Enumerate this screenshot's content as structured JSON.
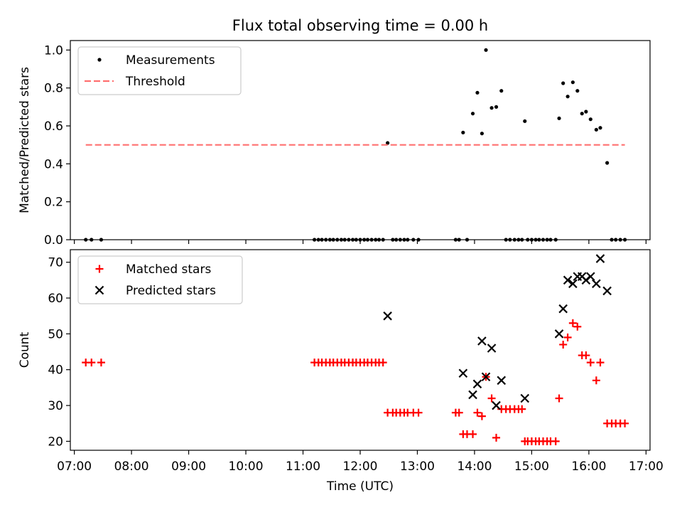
{
  "title": "Flux total observing time = 0.00 h",
  "colors": {
    "measurement": "#000000",
    "threshold": "#ff7070",
    "matched": "#ff0000",
    "predicted": "#000000"
  },
  "chart_data": [
    {
      "type": "scatter",
      "ylabel": "Matched/Predicted stars",
      "xlim": [
        6.93,
        17.07
      ],
      "ylim": [
        0,
        1.05
      ],
      "yticks": [
        "0.0",
        "0.2",
        "0.4",
        "0.6",
        "0.8",
        "1.0"
      ],
      "ytick_values": [
        0,
        0.2,
        0.4,
        0.6,
        0.8,
        1.0
      ],
      "legend": {
        "location": "upper-left",
        "entries": [
          "Measurements",
          "Threshold"
        ]
      },
      "series": [
        {
          "name": "Measurements",
          "marker": "dot",
          "x": [
            7.2,
            7.3,
            7.47,
            11.2,
            11.27,
            11.33,
            11.4,
            11.47,
            11.53,
            11.6,
            11.67,
            11.73,
            11.8,
            11.87,
            11.93,
            12.0,
            12.07,
            12.13,
            12.2,
            12.27,
            12.33,
            12.4,
            12.48,
            12.57,
            12.63,
            12.7,
            12.77,
            12.83,
            12.93,
            13.02,
            13.67,
            13.73,
            13.8,
            13.87,
            13.97,
            14.05,
            14.13,
            14.2,
            14.3,
            14.38,
            14.47,
            14.55,
            14.62,
            14.7,
            14.77,
            14.83,
            14.88,
            14.93,
            15.0,
            15.07,
            15.13,
            15.2,
            15.27,
            15.33,
            15.42,
            15.48,
            15.55,
            15.63,
            15.72,
            15.8,
            15.88,
            15.95,
            16.03,
            16.13,
            16.2,
            16.32,
            16.4,
            16.47,
            16.55,
            16.63
          ],
          "y": [
            0,
            0,
            0,
            0,
            0,
            0,
            0,
            0,
            0,
            0,
            0,
            0,
            0,
            0,
            0,
            0,
            0,
            0,
            0,
            0,
            0,
            0,
            0.51,
            0,
            0,
            0,
            0,
            0,
            0,
            0,
            0,
            0,
            0.565,
            0,
            0.665,
            0.775,
            0.56,
            1.0,
            0.695,
            0.7,
            0.785,
            0,
            0,
            0,
            0,
            0,
            0.625,
            0,
            0,
            0,
            0,
            0,
            0,
            0,
            0,
            0.64,
            0.825,
            0.755,
            0.83,
            0.785,
            0.665,
            0.675,
            0.635,
            0.58,
            0.59,
            0.405,
            0,
            0,
            0,
            0
          ]
        },
        {
          "name": "Threshold",
          "style": "dashed-line",
          "x": [
            7.2,
            16.63
          ],
          "y": [
            0.5,
            0.5
          ]
        }
      ]
    },
    {
      "type": "scatter",
      "xlabel": "Time (UTC)",
      "ylabel": "Count",
      "xlim": [
        6.93,
        17.07
      ],
      "ylim": [
        17.5,
        73.5
      ],
      "yticks": [
        "20",
        "30",
        "40",
        "50",
        "60",
        "70"
      ],
      "ytick_values": [
        20,
        30,
        40,
        50,
        60,
        70
      ],
      "xticks": [
        "07:00",
        "08:00",
        "09:00",
        "10:00",
        "11:00",
        "12:00",
        "13:00",
        "14:00",
        "15:00",
        "16:00",
        "17:00"
      ],
      "xtick_values": [
        7,
        8,
        9,
        10,
        11,
        12,
        13,
        14,
        15,
        16,
        17
      ],
      "legend": {
        "location": "upper-left",
        "entries": [
          "Matched stars",
          "Predicted stars"
        ]
      },
      "series": [
        {
          "name": "Matched stars",
          "marker": "plus",
          "x": [
            7.2,
            7.3,
            7.47,
            11.2,
            11.27,
            11.33,
            11.4,
            11.47,
            11.53,
            11.6,
            11.67,
            11.73,
            11.8,
            11.87,
            11.93,
            12.0,
            12.07,
            12.13,
            12.2,
            12.27,
            12.33,
            12.4,
            12.48,
            12.57,
            12.63,
            12.7,
            12.77,
            12.83,
            12.93,
            13.02,
            13.67,
            13.73,
            13.8,
            13.87,
            13.97,
            14.05,
            14.13,
            14.2,
            14.3,
            14.38,
            14.47,
            14.55,
            14.62,
            14.7,
            14.77,
            14.83,
            14.88,
            14.93,
            15.0,
            15.07,
            15.13,
            15.2,
            15.27,
            15.33,
            15.42,
            15.48,
            15.55,
            15.63,
            15.72,
            15.8,
            15.88,
            15.95,
            16.03,
            16.13,
            16.2,
            16.32,
            16.4,
            16.47,
            16.55,
            16.63
          ],
          "y": [
            42,
            42,
            42,
            42,
            42,
            42,
            42,
            42,
            42,
            42,
            42,
            42,
            42,
            42,
            42,
            42,
            42,
            42,
            42,
            42,
            42,
            42,
            28,
            28,
            28,
            28,
            28,
            28,
            28,
            28,
            28,
            28,
            22,
            22,
            22,
            28,
            27,
            38,
            32,
            21,
            29,
            29,
            29,
            29,
            29,
            29,
            20,
            20,
            20,
            20,
            20,
            20,
            20,
            20,
            20,
            32,
            47,
            49,
            53,
            52,
            44,
            44,
            42,
            37,
            42,
            25,
            25,
            25,
            25,
            25
          ]
        },
        {
          "name": "Predicted stars",
          "marker": "cross",
          "x": [
            12.48,
            13.8,
            13.97,
            14.05,
            14.13,
            14.2,
            14.3,
            14.38,
            14.47,
            14.88,
            15.48,
            15.55,
            15.63,
            15.72,
            15.8,
            15.88,
            15.95,
            16.03,
            16.13,
            16.2,
            16.32
          ],
          "y": [
            55,
            39,
            33,
            36,
            48,
            38,
            46,
            30,
            37,
            32,
            50,
            57,
            65,
            64,
            66,
            66,
            65,
            66,
            64,
            71,
            62
          ]
        }
      ]
    }
  ]
}
